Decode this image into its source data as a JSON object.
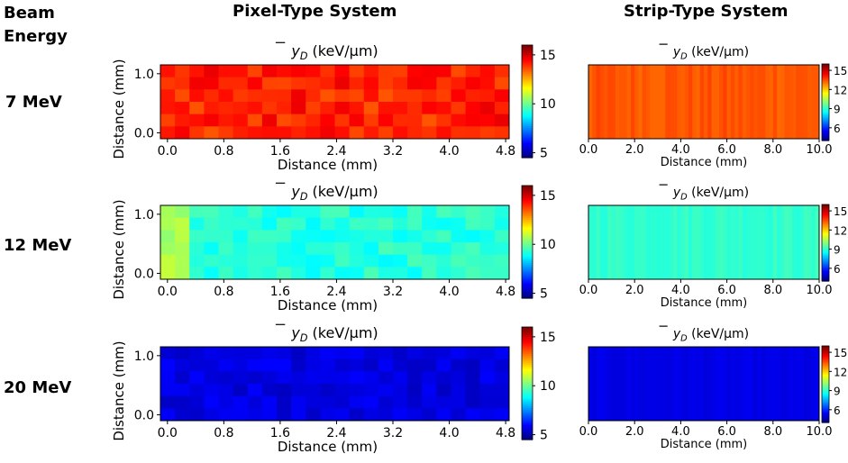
{
  "headers": {
    "beam_energy": [
      "Beam",
      "Energy"
    ],
    "pixel": "Pixel-Type System",
    "strip": "Strip-Type System"
  },
  "plot_title": "ȳ_D (keV/µm)",
  "common": {
    "xlabel": "Distance (mm)",
    "ylabel": "Distance (mm)",
    "pixel_x_ticks": [
      "0.0",
      "0.8",
      "1.6",
      "2.4",
      "3.2",
      "4.0",
      "4.8"
    ],
    "pixel_y_ticks": [
      "0.0",
      "1.0"
    ],
    "strip_x_ticks": [
      "0.0",
      "2.0",
      "4.0",
      "6.0",
      "8.0",
      "10.0"
    ],
    "pixel_cbar_ticks": [
      "5",
      "10",
      "15"
    ],
    "strip_cbar_ticks": [
      "6",
      "9",
      "12",
      "15"
    ],
    "colormap": "jet",
    "pixel_clim": [
      4.5,
      16
    ],
    "strip_clim": [
      4,
      16
    ]
  },
  "chart_data": [
    {
      "type": "heatmap",
      "system": "Pixel-Type System",
      "row_label": "7 MeV",
      "title": "ȳ_D (keV/µm)",
      "xlabel": "Distance (mm)",
      "ylabel": "Distance (mm)",
      "xlim": [
        -0.1,
        4.85
      ],
      "ylim": [
        -0.1,
        1.15
      ],
      "grid_shape": [
        6,
        24
      ],
      "mean_value": 14.2,
      "spread": 0.6,
      "colorbar_ticks": [
        5,
        10,
        15
      ]
    },
    {
      "type": "heatmap",
      "system": "Strip-Type System",
      "row_label": "7 MeV",
      "title": "ȳ_D (keV/µm)",
      "xlabel": "Distance (mm)",
      "xlim": [
        0,
        10
      ],
      "strips": 60,
      "mean_value": 13.5,
      "spread": 0.25,
      "colorbar_ticks": [
        6,
        9,
        12,
        15
      ]
    },
    {
      "type": "heatmap",
      "system": "Pixel-Type System",
      "row_label": "12 MeV",
      "title": "ȳ_D (keV/µm)",
      "xlabel": "Distance (mm)",
      "ylabel": "Distance (mm)",
      "xlim": [
        -0.1,
        4.85
      ],
      "ylim": [
        -0.1,
        1.15
      ],
      "grid_shape": [
        6,
        24
      ],
      "mean_value": 9.2,
      "spread": 0.45,
      "colorbar_ticks": [
        5,
        10,
        15
      ]
    },
    {
      "type": "heatmap",
      "system": "Strip-Type System",
      "row_label": "12 MeV",
      "title": "ȳ_D (keV/µm)",
      "xlabel": "Distance (mm)",
      "xlim": [
        0,
        10
      ],
      "strips": 60,
      "mean_value": 9.1,
      "spread": 0.2,
      "colorbar_ticks": [
        6,
        9,
        12,
        15
      ]
    },
    {
      "type": "heatmap",
      "system": "Pixel-Type System",
      "row_label": "20 MeV",
      "title": "ȳ_D (keV/µm)",
      "xlabel": "Distance (mm)",
      "ylabel": "Distance (mm)",
      "xlim": [
        -0.1,
        4.85
      ],
      "ylim": [
        -0.1,
        1.15
      ],
      "grid_shape": [
        6,
        24
      ],
      "mean_value": 5.6,
      "spread": 0.35,
      "colorbar_ticks": [
        5,
        10,
        15
      ]
    },
    {
      "type": "heatmap",
      "system": "Strip-Type System",
      "row_label": "20 MeV",
      "title": "ȳ_D (keV/µm)",
      "xlabel": "Distance (mm)",
      "xlim": [
        0,
        10
      ],
      "strips": 60,
      "mean_value": 5.2,
      "spread": 0.12,
      "colorbar_ticks": [
        6,
        9,
        12,
        15
      ]
    }
  ]
}
